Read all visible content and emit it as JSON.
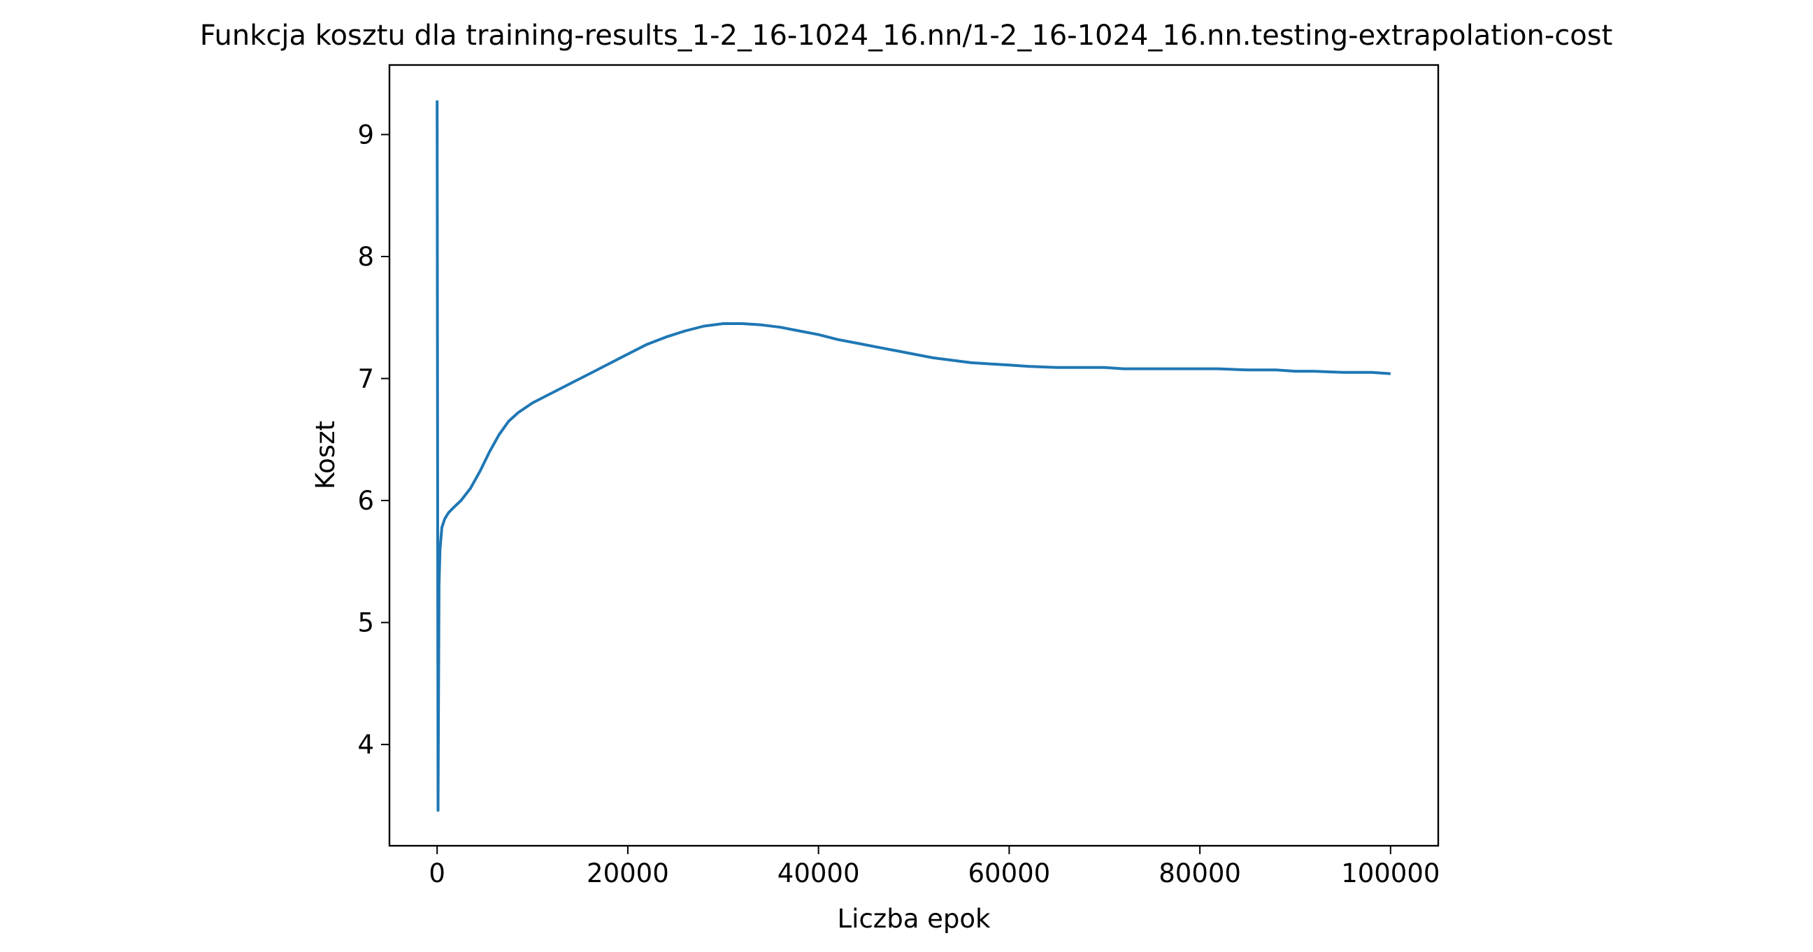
{
  "chart_data": {
    "type": "line",
    "title": "Funkcja kosztu dla training-results_1-2_16-1024_16.nn/1-2_16-1024_16.nn.testing-extrapolation-cost",
    "xlabel": "Liczba epok",
    "ylabel": "Koszt",
    "xlim": [
      -5000,
      105000
    ],
    "ylim": [
      3.17,
      9.57
    ],
    "x_ticks": [
      0,
      20000,
      40000,
      60000,
      80000,
      100000
    ],
    "x_tick_labels": [
      "0",
      "20000",
      "40000",
      "60000",
      "80000",
      "100000"
    ],
    "y_ticks": [
      4,
      5,
      6,
      7,
      8,
      9
    ],
    "y_tick_labels": [
      "4",
      "5",
      "6",
      "7",
      "8",
      "9"
    ],
    "grid": false,
    "legend": "none",
    "series": [
      {
        "color": "#1f77b4",
        "x": [
          0,
          100,
          200,
          300,
          500,
          800,
          1200,
          1700,
          2500,
          3500,
          4500,
          5500,
          6500,
          7500,
          8500,
          10000,
          12000,
          14000,
          16000,
          18000,
          20000,
          22000,
          24000,
          26000,
          28000,
          30000,
          32000,
          34000,
          36000,
          38000,
          40000,
          42000,
          44000,
          46000,
          48000,
          50000,
          52000,
          54000,
          56000,
          58000,
          60000,
          62000,
          65000,
          68000,
          70000,
          72000,
          75000,
          78000,
          80000,
          82000,
          85000,
          88000,
          90000,
          92000,
          95000,
          98000,
          100000
        ],
        "y": [
          9.28,
          3.46,
          5.3,
          5.6,
          5.78,
          5.85,
          5.9,
          5.94,
          6.0,
          6.1,
          6.24,
          6.4,
          6.54,
          6.65,
          6.72,
          6.8,
          6.88,
          6.96,
          7.04,
          7.12,
          7.2,
          7.28,
          7.34,
          7.39,
          7.43,
          7.45,
          7.45,
          7.44,
          7.42,
          7.39,
          7.36,
          7.32,
          7.29,
          7.26,
          7.23,
          7.2,
          7.17,
          7.15,
          7.13,
          7.12,
          7.11,
          7.1,
          7.09,
          7.09,
          7.09,
          7.08,
          7.08,
          7.08,
          7.08,
          7.08,
          7.07,
          7.07,
          7.06,
          7.06,
          7.05,
          7.05,
          7.04
        ]
      }
    ]
  }
}
